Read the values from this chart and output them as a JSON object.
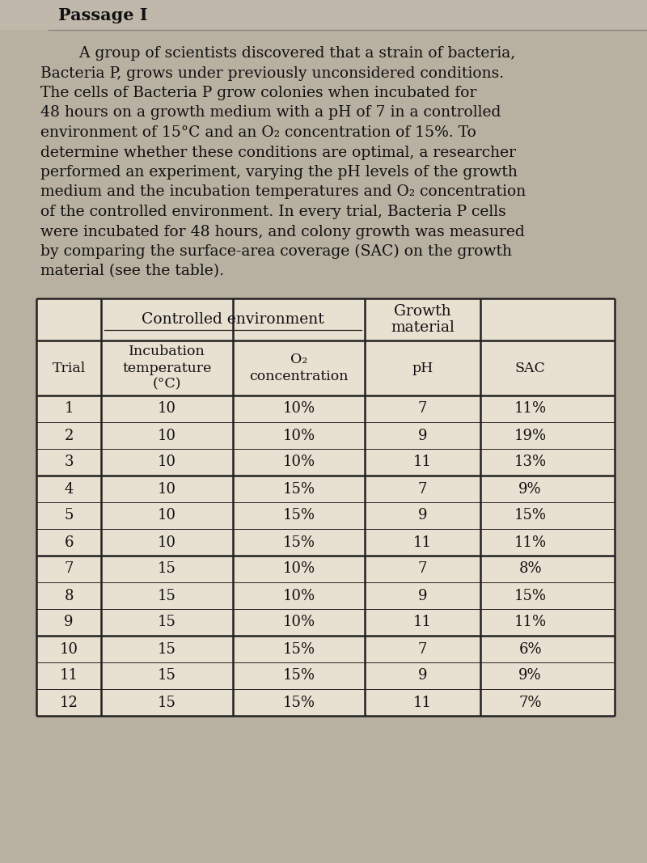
{
  "passage_title": "Passage I",
  "passage_lines": [
    "        A group of scientists discovered that a strain of bacteria,",
    "Bacteria P, grows under previously unconsidered conditions.",
    "The cells of Bacteria P grow colonies when incubated for",
    "48 hours on a growth medium with a pH of 7 in a controlled",
    "environment of 15°C and an O₂ concentration of 15%. To",
    "determine whether these conditions are optimal, a researcher",
    "performed an experiment, varying the pH levels of the growth",
    "medium and the incubation temperatures and O₂ concentration",
    "of the controlled environment. In every trial, Bacteria P cells",
    "were incubated for 48 hours, and colony growth was measured",
    "by comparing the surface-area coverage (SAC) on the growth",
    "material (see the table)."
  ],
  "table": {
    "rows": [
      [
        "1",
        "10",
        "10%",
        "7",
        "11%"
      ],
      [
        "2",
        "10",
        "10%",
        "9",
        "19%"
      ],
      [
        "3",
        "10",
        "10%",
        "11",
        "13%"
      ],
      [
        "4",
        "10",
        "15%",
        "7",
        "9%"
      ],
      [
        "5",
        "10",
        "15%",
        "9",
        "15%"
      ],
      [
        "6",
        "10",
        "15%",
        "11",
        "11%"
      ],
      [
        "7",
        "15",
        "10%",
        "7",
        "8%"
      ],
      [
        "8",
        "15",
        "10%",
        "9",
        "15%"
      ],
      [
        "9",
        "15",
        "10%",
        "11",
        "11%"
      ],
      [
        "10",
        "15",
        "15%",
        "7",
        "6%"
      ],
      [
        "11",
        "15",
        "15%",
        "9",
        "9%"
      ],
      [
        "12",
        "15",
        "15%",
        "11",
        "7%"
      ]
    ],
    "group_separators": [
      3,
      6,
      9
    ],
    "text_color": "#111111"
  },
  "bg_color_top": "#b8b0a0",
  "bg_color_table": "#c8bda8",
  "title_fontsize": 15,
  "body_fontsize": 13.5,
  "table_fontsize": 12.5
}
